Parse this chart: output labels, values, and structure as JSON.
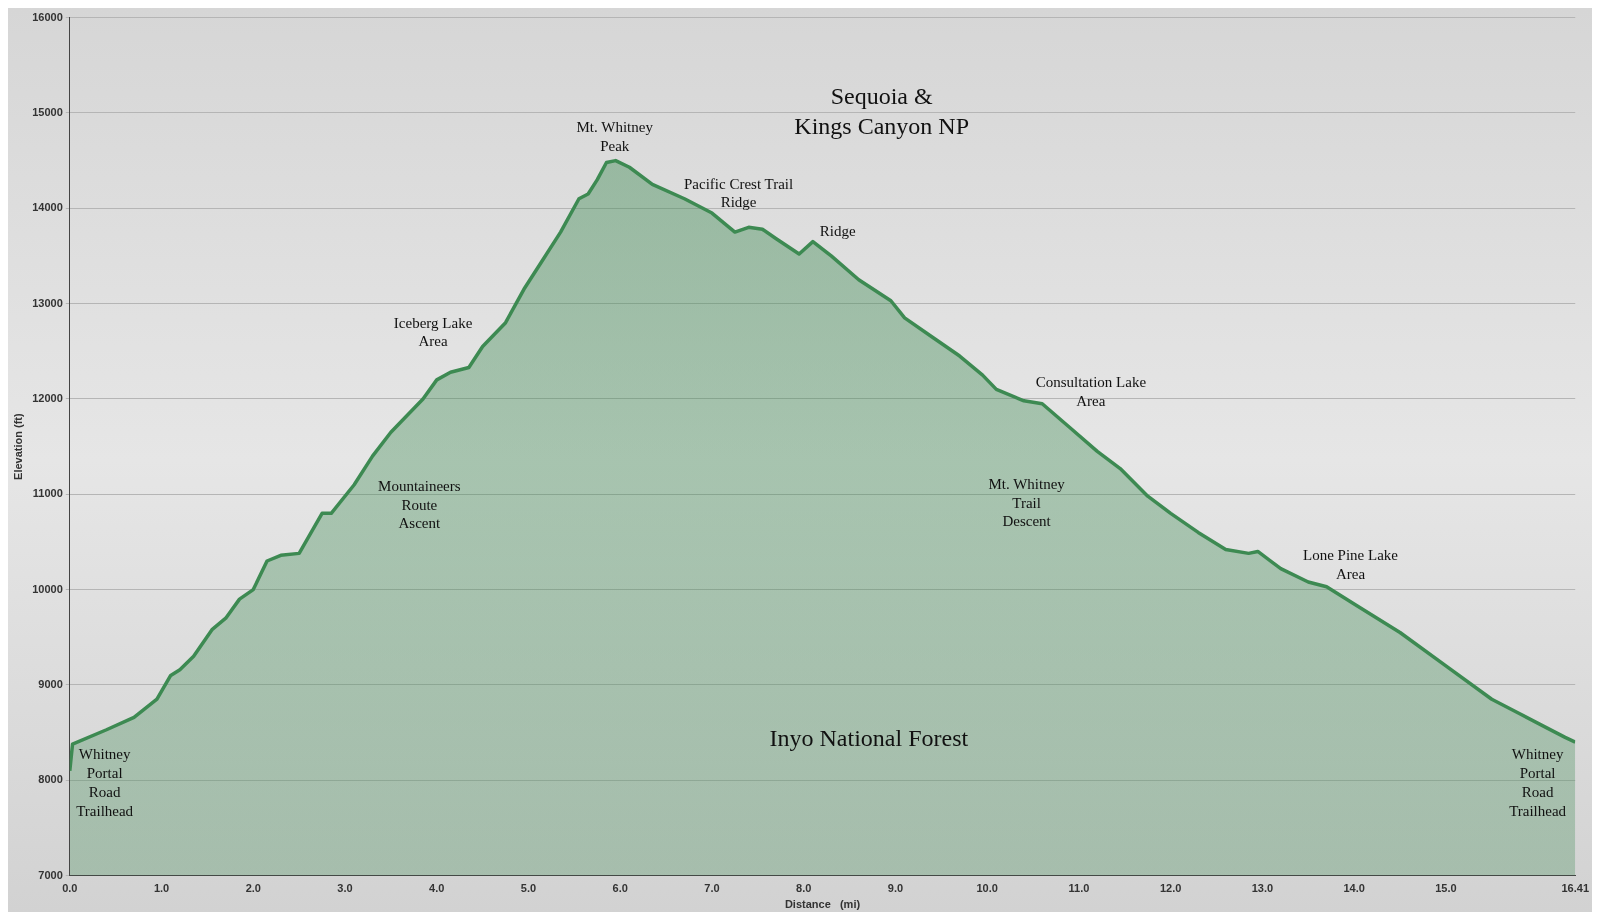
{
  "chart_data": {
    "type": "area",
    "xlabel": "Distance   (mi)",
    "ylabel": "Elevation (ft)",
    "color": "#3d8a52",
    "x": [
      0,
      0.03,
      0.4,
      0.7,
      0.95,
      1.1,
      1.2,
      1.35,
      1.55,
      1.7,
      1.85,
      2.0,
      2.15,
      2.3,
      2.5,
      2.75,
      2.85,
      3.1,
      3.3,
      3.5,
      3.65,
      3.85,
      4.0,
      4.15,
      4.35,
      4.5,
      4.6,
      4.75,
      4.95,
      5.15,
      5.35,
      5.55,
      5.65,
      5.75,
      5.85,
      5.95,
      6.1,
      6.35,
      6.7,
      7.0,
      7.25,
      7.4,
      7.55,
      7.7,
      7.95,
      8.1,
      8.3,
      8.6,
      8.95,
      9.1,
      9.4,
      9.7,
      9.95,
      10.1,
      10.4,
      10.6,
      10.9,
      11.2,
      11.45,
      11.75,
      12.0,
      12.3,
      12.6,
      12.85,
      12.95,
      13.2,
      13.5,
      13.7,
      14.0,
      14.5,
      15.0,
      15.5,
      15.8,
      16.1,
      16.3,
      16.41
    ],
    "values": [
      8100,
      8380,
      8530,
      8660,
      8850,
      9100,
      9160,
      9300,
      9580,
      9700,
      9900,
      10000,
      10300,
      10360,
      10380,
      10800,
      10800,
      11100,
      11400,
      11650,
      11800,
      12000,
      12200,
      12280,
      12330,
      12550,
      12650,
      12800,
      13150,
      13450,
      13750,
      14100,
      14150,
      14300,
      14480,
      14500,
      14430,
      14250,
      14100,
      13950,
      13750,
      13800,
      13780,
      13680,
      13520,
      13650,
      13500,
      13250,
      13030,
      12850,
      12650,
      12450,
      12250,
      12100,
      11980,
      11950,
      11700,
      11450,
      11270,
      10980,
      10800,
      10600,
      10420,
      10380,
      10400,
      10220,
      10080,
      10030,
      9850,
      9550,
      9200,
      8850,
      8700,
      8550,
      8450,
      8400
    ],
    "xlim": [
      0,
      16.41
    ],
    "xticks": [
      {
        "value": 0,
        "label": "0.0"
      },
      {
        "value": 1,
        "label": "1.0"
      },
      {
        "value": 2,
        "label": "2.0"
      },
      {
        "value": 3,
        "label": "3.0"
      },
      {
        "value": 4,
        "label": "4.0"
      },
      {
        "value": 5,
        "label": "5.0"
      },
      {
        "value": 6,
        "label": "6.0"
      },
      {
        "value": 7,
        "label": "7.0"
      },
      {
        "value": 8,
        "label": "8.0"
      },
      {
        "value": 9,
        "label": "9.0"
      },
      {
        "value": 10,
        "label": "10.0"
      },
      {
        "value": 11,
        "label": "11.0"
      },
      {
        "value": 12,
        "label": "12.0"
      },
      {
        "value": 13,
        "label": "13.0"
      },
      {
        "value": 14,
        "label": "14.0"
      },
      {
        "value": 15,
        "label": "15.0"
      },
      16.41
    ],
    "ylim": [
      7000,
      16000
    ],
    "yticks": [
      7000,
      8000,
      9000,
      10000,
      11000,
      12000,
      13000,
      14000,
      15000,
      16000
    ],
    "grid": "y",
    "annotations": [
      "Whitney\nPortal\nRoad\nTrailhead",
      "Iceberg Lake\nArea",
      "Mountaineers\nRoute\nAscent",
      "Mt. Whitney\nPeak",
      "Pacific Crest Trail\nRidge",
      "Ridge",
      "Sequoia &\nKings Canyon NP",
      "Consultation Lake\nArea",
      "Mt. Whitney\nTrail\nDescent",
      "Lone Pine Lake\nArea",
      "Inyo National Forest",
      "Whitney\nPortal\nRoad\nTrailhead"
    ]
  }
}
